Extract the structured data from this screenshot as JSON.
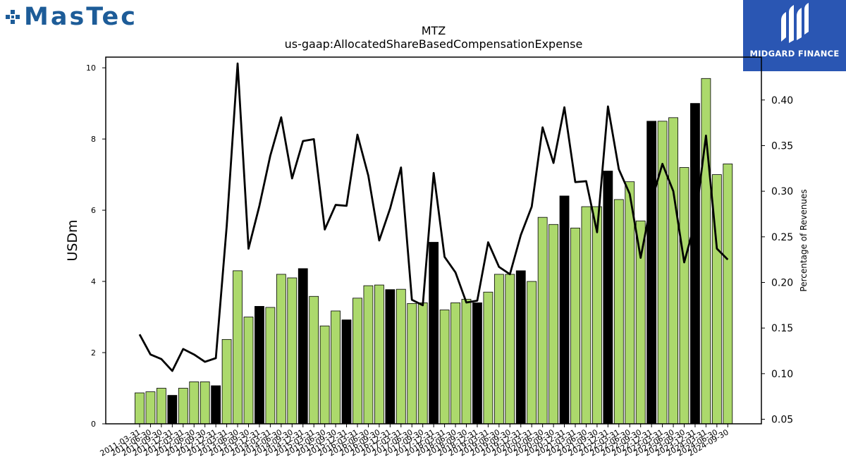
{
  "logos": {
    "left": "MasTec",
    "right": "MIDGARD FINANCE"
  },
  "chart_data": {
    "type": "bar",
    "title": "MTZ",
    "subtitle": "us-gaap:AllocatedShareBasedCompensationExpense",
    "ylabel": "USDm",
    "y2label": "Percentage of Revenues",
    "ylim": [
      0,
      10.3
    ],
    "y2lim": [
      0.045,
      0.447
    ],
    "yticks": [
      0,
      2,
      4,
      6,
      8,
      10
    ],
    "y2ticks": [
      "0.05",
      "0.10",
      "0.15",
      "0.20",
      "0.25",
      "0.30",
      "0.35",
      "0.40"
    ],
    "colors": {
      "bar": "#acd96c",
      "bar_q4": "#000000",
      "line": "#000000"
    },
    "categories": [
      "2011-03-31",
      "2011-06-30",
      "2011-09-30",
      "2011-12-31",
      "2012-03-31",
      "2012-06-30",
      "2012-09-30",
      "2012-12-31",
      "2013-03-31",
      "2013-06-30",
      "2013-09-30",
      "2013-12-31",
      "2014-03-31",
      "2014-06-30",
      "2014-09-30",
      "2014-12-31",
      "2015-03-31",
      "2015-06-30",
      "2015-09-30",
      "2015-12-31",
      "2016-03-31",
      "2016-06-30",
      "2016-09-30",
      "2016-12-31",
      "2017-03-31",
      "2017-06-30",
      "2017-09-30",
      "2017-12-31",
      "2018-03-31",
      "2018-06-30",
      "2018-09-30",
      "2018-12-31",
      "2019-03-31",
      "2019-06-30",
      "2019-09-30",
      "2019-12-31",
      "2020-03-31",
      "2020-06-30",
      "2020-09-30",
      "2020-12-31",
      "2021-03-31",
      "2021-06-30",
      "2021-09-30",
      "2021-12-31",
      "2022-03-31",
      "2022-06-30",
      "2022-09-30",
      "2022-12-31",
      "2023-03-31",
      "2023-06-30",
      "2023-09-30",
      "2023-12-31",
      "2024-03-31",
      "2024-06-30",
      "2024-09-30"
    ],
    "series": [
      {
        "kind": "bar",
        "axis": "left",
        "values": [
          0.87,
          0.9,
          1.0,
          0.8,
          1.0,
          1.18,
          1.18,
          1.07,
          2.37,
          4.3,
          3.0,
          3.3,
          3.27,
          4.2,
          4.1,
          4.36,
          3.58,
          2.75,
          3.17,
          2.92,
          3.53,
          3.88,
          3.9,
          3.77,
          3.78,
          3.38,
          3.4,
          5.1,
          3.2,
          3.4,
          3.5,
          3.4,
          3.7,
          4.2,
          4.2,
          4.3,
          4.0,
          5.8,
          5.6,
          6.4,
          5.5,
          6.1,
          6.1,
          7.1,
          6.3,
          6.8,
          5.7,
          8.5,
          8.5,
          8.6,
          7.2,
          9.0,
          9.7,
          7.0,
          7.3
        ]
      },
      {
        "kind": "line",
        "axis": "right",
        "values": [
          0.143,
          0.121,
          0.116,
          0.103,
          0.127,
          0.121,
          0.113,
          0.117,
          0.262,
          0.44,
          0.237,
          0.284,
          0.339,
          0.381,
          0.314,
          0.355,
          0.357,
          0.258,
          0.285,
          0.284,
          0.362,
          0.317,
          0.246,
          0.281,
          0.326,
          0.181,
          0.175,
          0.32,
          0.228,
          0.211,
          0.178,
          0.18,
          0.244,
          0.217,
          0.209,
          0.252,
          0.283,
          0.37,
          0.331,
          0.392,
          0.31,
          0.311,
          0.255,
          0.393,
          0.324,
          0.297,
          0.227,
          0.289,
          0.33,
          0.3,
          0.222,
          0.266,
          0.361,
          0.237,
          0.225
        ]
      }
    ]
  }
}
